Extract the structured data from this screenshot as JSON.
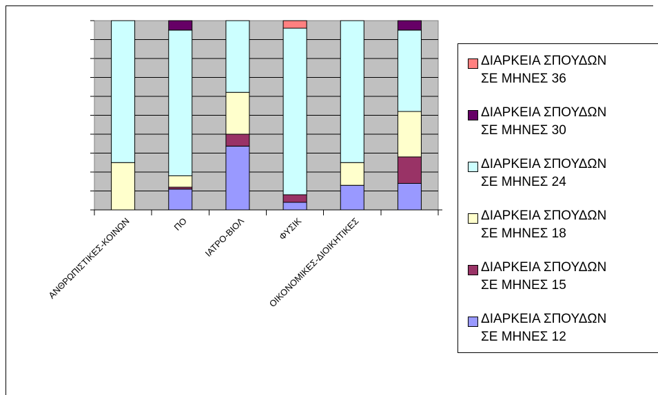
{
  "chart_data": {
    "type": "bar",
    "stacked": "percent",
    "categories": [
      "ΑΝΘΡΩΠΙΣΤΙΚΕΣ-ΚΟΙΝΩΝ",
      "ΠΟ",
      "ΙΑΤΡΟ-ΒΙΟΛ",
      "ΦΥΣΙΚ",
      "ΟΙΚΟΝΟΜΙΚΕΣ-ΔΙΟΙΚΗΤΙΚΕΣ",
      ""
    ],
    "series": [
      {
        "name": "ΔΙΑΡΚΕΙΑ ΣΠΟΥΔΩΝ\nΣΕ ΜΗΝΕΣ 12",
        "color": "#9999FF",
        "values": [
          0,
          11,
          32,
          4,
          13,
          14
        ]
      },
      {
        "name": "ΔΙΑΡΚΕΙΑ ΣΠΟΥΔΩΝ\nΣΕ ΜΗΝΕΣ 15",
        "color": "#993366",
        "values": [
          0,
          1,
          6,
          4,
          0,
          14
        ]
      },
      {
        "name": "ΔΙΑΡΚΕΙΑ ΣΠΟΥΔΩΝ\nΣΕ ΜΗΝΕΣ 18",
        "color": "#FFFFCC",
        "values": [
          25,
          6,
          21,
          0,
          12,
          24
        ]
      },
      {
        "name": "ΔΙΑΡΚΕΙΑ ΣΠΟΥΔΩΝ\nΣΕ ΜΗΝΕΣ 24",
        "color": "#CCFFFF",
        "values": [
          75,
          77,
          36,
          88,
          75,
          43
        ]
      },
      {
        "name": "ΔΙΑΡΚΕΙΑ ΣΠΟΥΔΩΝ\nΣΕ ΜΗΝΕΣ 30",
        "color": "#660066",
        "values": [
          0,
          5,
          0,
          0,
          0,
          5
        ]
      },
      {
        "name": "ΔΙΑΡΚΕΙΑ ΣΠΟΥΔΩΝ\nΣΕ ΜΗΝΕΣ 36",
        "color": "#FF8080",
        "values": [
          0,
          0,
          0,
          4,
          0,
          0
        ]
      }
    ],
    "ylim": [
      0,
      100
    ],
    "grid": true,
    "legend": "right",
    "plot_background": "#C0C0C0"
  }
}
